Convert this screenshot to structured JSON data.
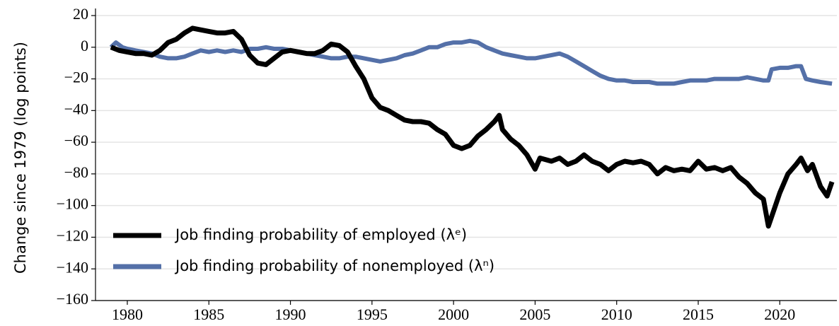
{
  "chart_data": {
    "type": "line",
    "ylabel": "Change since 1979 (log points)",
    "xlim": [
      1978.05,
      2023.5
    ],
    "xticks": [
      1980,
      1985,
      1990,
      1995,
      2000,
      2005,
      2010,
      2015,
      2020
    ],
    "ylim": [
      -160,
      20
    ],
    "yticks": [
      {
        "value": -160,
        "label": "−160"
      },
      {
        "value": -140,
        "label": "−140"
      },
      {
        "value": -120,
        "label": "−120"
      },
      {
        "value": -100,
        "label": "−100"
      },
      {
        "value": -80,
        "label": "−80"
      },
      {
        "value": -60,
        "label": "−60"
      },
      {
        "value": -40,
        "label": "−40"
      },
      {
        "value": -20,
        "label": "−20"
      },
      0,
      20
    ],
    "grid": true,
    "legend": "lower left",
    "series": [
      {
        "name": "Job finding probability of employed (λᵉ)",
        "color": "#000000",
        "x": [
          1979,
          1979.5,
          1980,
          1980.5,
          1981,
          1981.5,
          1982,
          1982.5,
          1983,
          1983.5,
          1984,
          1984.5,
          1985,
          1985.5,
          1986,
          1986.5,
          1987,
          1987.5,
          1988,
          1988.5,
          1989,
          1989.5,
          1990,
          1990.5,
          1991,
          1991.5,
          1992,
          1992.5,
          1993,
          1993.5,
          1994,
          1994.5,
          1995,
          1995.5,
          1996,
          1996.5,
          1997,
          1997.5,
          1998,
          1998.5,
          1999,
          1999.5,
          2000,
          2000.5,
          2001,
          2001.5,
          2002,
          2002.5,
          2002.8,
          2003,
          2003.5,
          2004,
          2004.5,
          2005,
          2005.3,
          2006,
          2006.5,
          2007,
          2007.5,
          2008,
          2008.5,
          2009,
          2009.5,
          2010,
          2010.5,
          2011,
          2011.5,
          2012,
          2012.5,
          2013,
          2013.5,
          2014,
          2014.5,
          2015,
          2015.5,
          2016,
          2016.5,
          2017,
          2017.5,
          2018,
          2018.5,
          2019,
          2019.3,
          2019.6,
          2020,
          2020.5,
          2021,
          2021.3,
          2021.7,
          2022,
          2022.5,
          2022.9,
          2023.2
        ],
        "values": [
          0,
          -2,
          -3,
          -4,
          -4,
          -5,
          -2,
          3,
          5,
          9,
          12,
          11,
          10,
          9,
          9,
          10,
          5,
          -5,
          -10,
          -11,
          -7,
          -3,
          -2,
          -3,
          -4,
          -4,
          -2,
          2,
          1,
          -3,
          -12,
          -20,
          -32,
          -38,
          -40,
          -43,
          -46,
          -47,
          -47,
          -48,
          -52,
          -55,
          -62,
          -64,
          -62,
          -56,
          -52,
          -47,
          -43,
          -52,
          -58,
          -62,
          -68,
          -77,
          -70,
          -72,
          -70,
          -74,
          -72,
          -68,
          -72,
          -74,
          -78,
          -74,
          -72,
          -73,
          -72,
          -74,
          -80,
          -76,
          -78,
          -77,
          -78,
          -72,
          -77,
          -76,
          -78,
          -76,
          -82,
          -86,
          -92,
          -96,
          -113,
          -104,
          -92,
          -80,
          -74,
          -70,
          -78,
          -74,
          -88,
          -94,
          -85
        ]
      },
      {
        "name": "Job finding probability of nonemployed (λⁿ)",
        "color": "#5470a8",
        "x": [
          1979,
          1979.3,
          1979.7,
          1980,
          1980.5,
          1981,
          1981.5,
          1982,
          1982.5,
          1983,
          1983.5,
          1984,
          1984.5,
          1985,
          1985.5,
          1986,
          1986.5,
          1987,
          1987.5,
          1988,
          1988.5,
          1989,
          1989.5,
          1990,
          1990.5,
          1991,
          1991.5,
          1992,
          1992.5,
          1993,
          1993.5,
          1994,
          1994.5,
          1995,
          1995.5,
          1996,
          1996.5,
          1997,
          1997.5,
          1998,
          1998.5,
          1999,
          1999.5,
          2000,
          2000.5,
          2001,
          2001.5,
          2002,
          2002.5,
          2003,
          2003.5,
          2004,
          2004.5,
          2005,
          2005.5,
          2006,
          2006.5,
          2007,
          2007.5,
          2008,
          2008.5,
          2009,
          2009.5,
          2010,
          2010.5,
          2011,
          2011.5,
          2012,
          2012.5,
          2013,
          2013.5,
          2014,
          2014.5,
          2015,
          2015.5,
          2016,
          2016.5,
          2017,
          2017.5,
          2018,
          2018.5,
          2019,
          2019.3,
          2019.5,
          2020,
          2020.5,
          2021,
          2021.3,
          2021.6,
          2022,
          2022.5,
          2023.2
        ],
        "values": [
          0,
          3,
          0,
          -1,
          -2,
          -3,
          -4,
          -6,
          -7,
          -7,
          -6,
          -4,
          -2,
          -3,
          -2,
          -3,
          -2,
          -3,
          -1,
          -1,
          0,
          -1,
          -1,
          -2,
          -3,
          -4,
          -5,
          -6,
          -7,
          -7,
          -6,
          -6,
          -7,
          -8,
          -9,
          -8,
          -7,
          -5,
          -4,
          -2,
          0,
          0,
          2,
          3,
          3,
          4,
          3,
          0,
          -2,
          -4,
          -5,
          -6,
          -7,
          -7,
          -6,
          -5,
          -4,
          -6,
          -9,
          -12,
          -15,
          -18,
          -20,
          -21,
          -21,
          -22,
          -22,
          -22,
          -23,
          -23,
          -23,
          -22,
          -21,
          -21,
          -21,
          -20,
          -20,
          -20,
          -20,
          -19,
          -20,
          -21,
          -21,
          -14,
          -13,
          -13,
          -12,
          -12,
          -20,
          -21,
          -22,
          -23
        ]
      }
    ]
  }
}
